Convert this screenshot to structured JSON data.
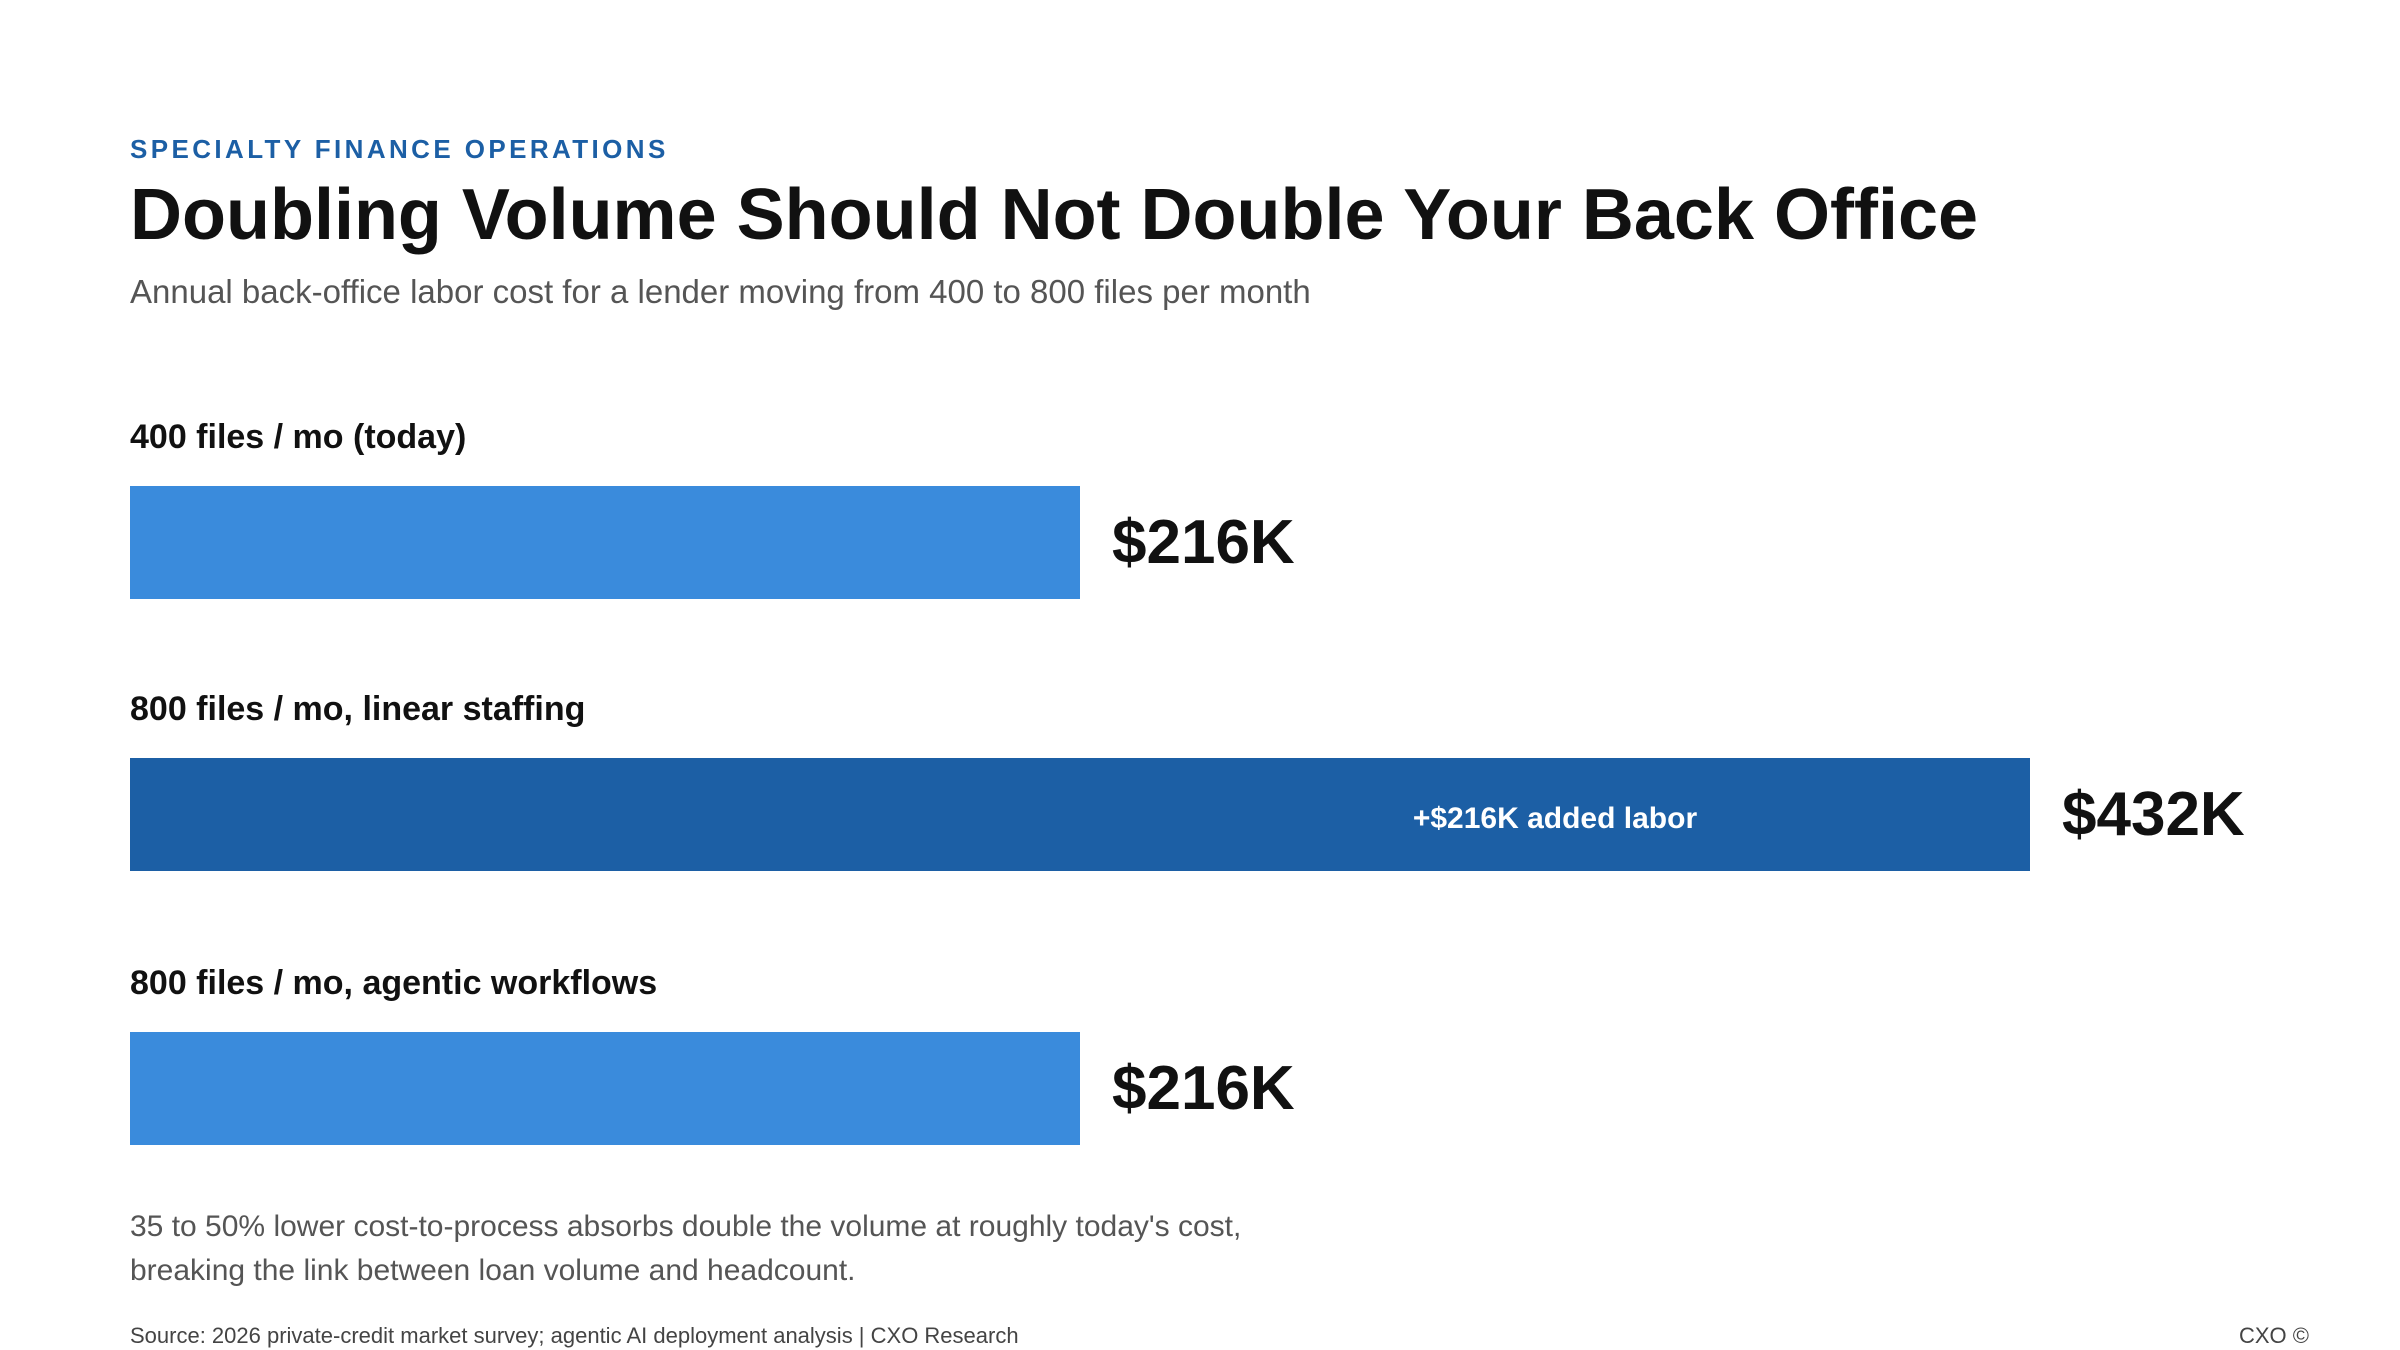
{
  "header": {
    "eyebrow": "SPECIALTY FINANCE OPERATIONS",
    "title": "Doubling Volume Should Not Double Your Back Office",
    "subtitle": "Annual back-office labor cost for a lender moving from 400 to 800 files per month"
  },
  "chart_data": {
    "type": "bar",
    "orientation": "horizontal",
    "unit": "$K",
    "xlim": [
      0,
      432
    ],
    "grid": false,
    "legend": "none",
    "categories": [
      "400 files / mo (today)",
      "800 files / mo, linear staffing",
      "800 files / mo, agentic workflows"
    ],
    "values": [
      216,
      432,
      216
    ],
    "value_labels": [
      "$216K",
      "$432K",
      "$216K"
    ],
    "bar_colors": [
      "#3a8bdc",
      "#1c5fa5",
      "#3a8bdc"
    ],
    "annotations": [
      {
        "category_index": 1,
        "text": "+$216K added labor",
        "span": [
          216,
          432
        ]
      }
    ]
  },
  "footer": {
    "note_line1": "35 to 50% lower cost-to-process absorbs double the volume at roughly today's cost,",
    "note_line2": "breaking the link between loan volume and headcount.",
    "source": "Source: 2026 private-credit market survey; agentic AI deployment analysis | CXO Research",
    "brand": "CXO ©"
  }
}
